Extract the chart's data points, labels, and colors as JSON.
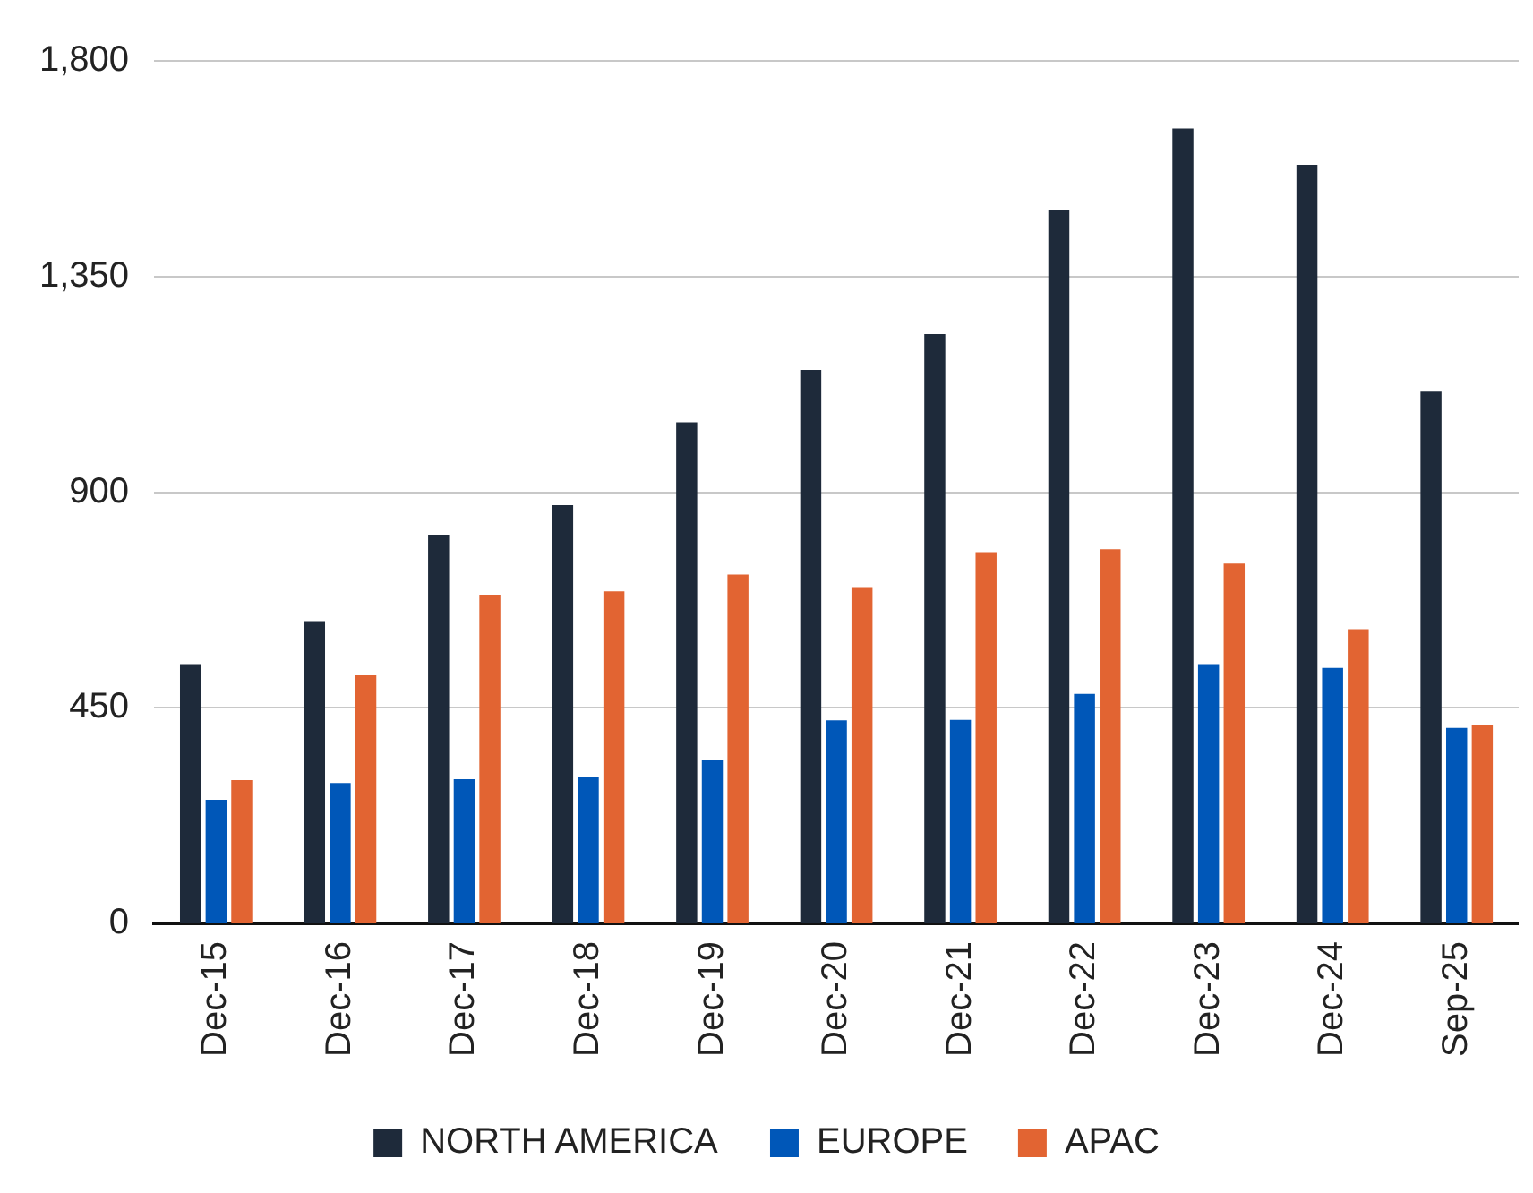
{
  "chart_data": {
    "type": "bar",
    "categories": [
      "Dec-15",
      "Dec-16",
      "Dec-17",
      "Dec-18",
      "Dec-19",
      "Dec-20",
      "Dec-21",
      "Dec-22",
      "Dec-23",
      "Dec-24",
      "Sep-25"
    ],
    "series": [
      {
        "name": "NORTH AMERICA",
        "color": "#1e2a3a",
        "values": [
          541,
          631,
          811,
          873,
          1046,
          1155,
          1230,
          1488,
          1659,
          1583,
          1110
        ]
      },
      {
        "name": "EUROPE",
        "color": "#0057b8",
        "values": [
          258,
          293,
          301,
          305,
          340,
          424,
          425,
          479,
          541,
          533,
          408
        ]
      },
      {
        "name": "APAC",
        "color": "#e26432",
        "values": [
          299,
          518,
          686,
          693,
          728,
          702,
          775,
          781,
          751,
          614,
          415
        ]
      }
    ],
    "ylim": [
      0,
      1800
    ],
    "yticks": [
      0,
      {
        "value": 450,
        "label": "450"
      },
      {
        "value": 900,
        "label": "900"
      },
      {
        "value": 1350,
        "label": "1,350"
      },
      {
        "value": 1800,
        "label": "1,800"
      }
    ],
    "grid": "y",
    "legend": "bottom"
  }
}
